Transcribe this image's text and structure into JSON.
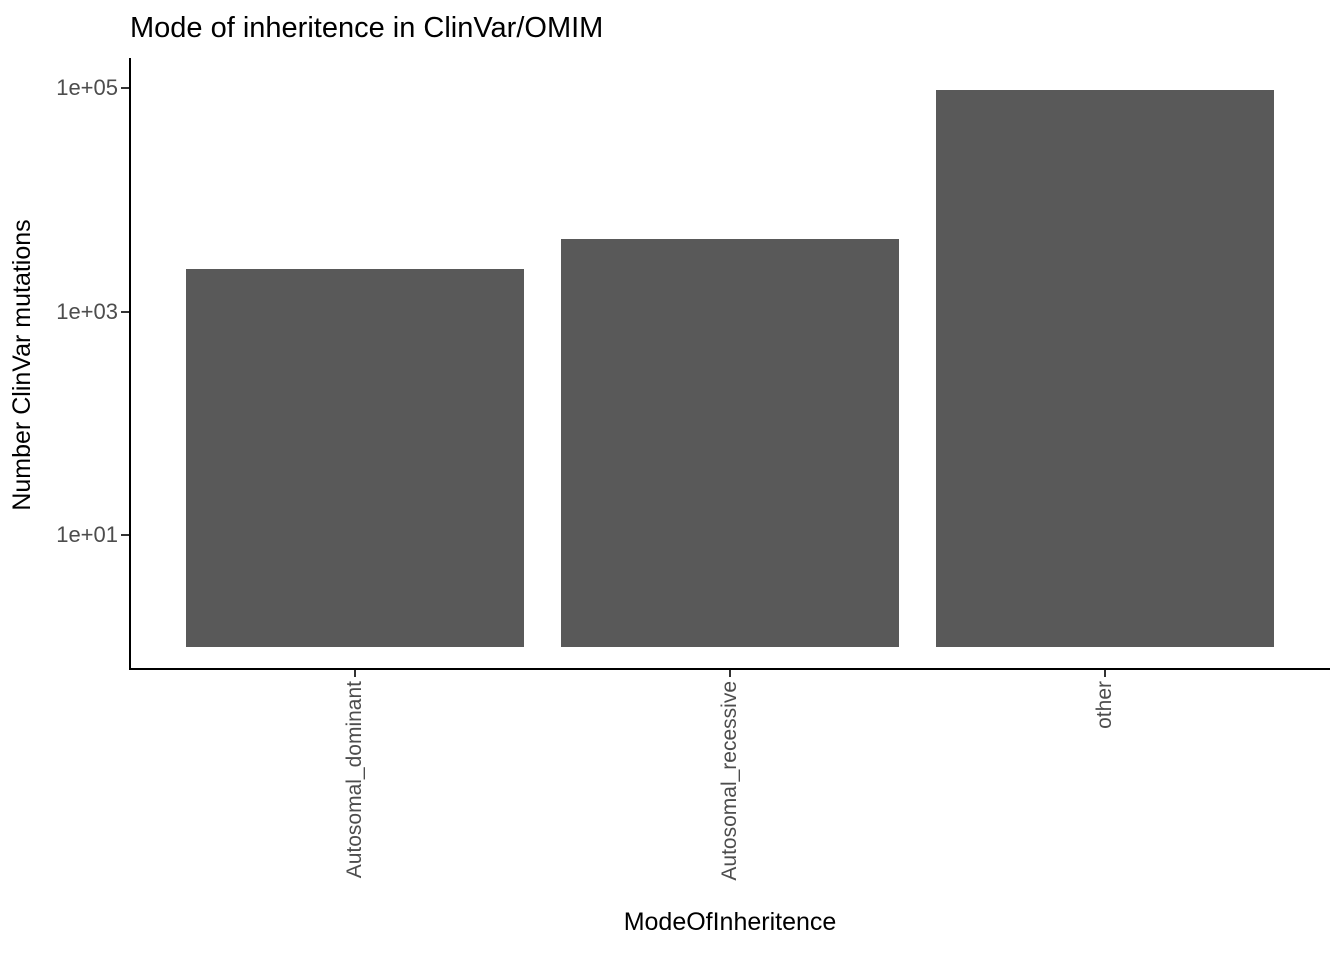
{
  "chart_data": {
    "type": "bar",
    "title": "Mode of inheritence in ClinVar/OMIM",
    "xlabel": "ModeOfInheritence",
    "ylabel": "Number ClinVar mutations",
    "categories": [
      "Autosomal_dominant",
      "Autosomal_recessive",
      "other"
    ],
    "values": [
      2400,
      4500,
      96000
    ],
    "y_scale": "log10",
    "y_ticks": [
      {
        "value": 10,
        "label": "1e+01"
      },
      {
        "value": 1000,
        "label": "1e+03"
      },
      {
        "value": 100000,
        "label": "1e+05"
      }
    ],
    "bar_base_value": 1,
    "ylim_approx": [
      0.65,
      180000
    ],
    "bar_color": "#595959",
    "axis_color": "#000000",
    "tick_text_color": "#4d4d4d",
    "grid": false,
    "legend_position": "none"
  }
}
